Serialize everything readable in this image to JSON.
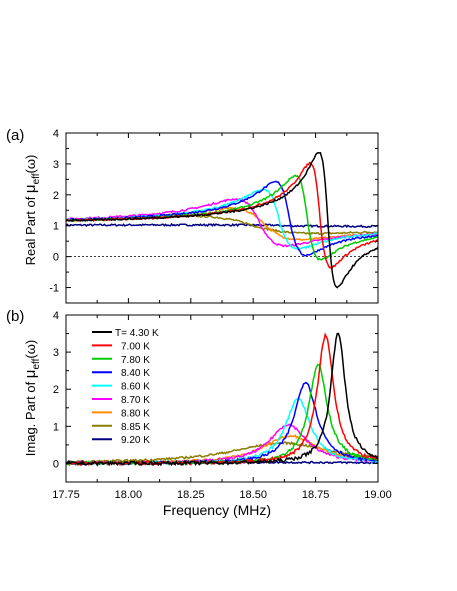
{
  "panels": {
    "a": {
      "label": "(a)",
      "ylabel": "Real Part of μ_eff(ω)",
      "ylabel_main": "Real Part of ",
      "ylabel_mu": "μ",
      "ylabel_sub": "eff",
      "ylabel_arg": "(ω)"
    },
    "b": {
      "label": "(b)",
      "ylabel": "Imag. Part of μ_eff(ω)",
      "ylabel_main": "Imag. Part of ",
      "ylabel_mu": "μ",
      "ylabel_sub": "eff",
      "ylabel_arg": "(ω)"
    }
  },
  "xlabel": "Frequency (MHz)",
  "chart_data": [
    {
      "type": "line",
      "panel": "(a)",
      "xlabel": "",
      "ylabel": "Real Part of μ_eff(ω)",
      "xlim": [
        17.75,
        19.0
      ],
      "ylim": [
        -1.5,
        4
      ],
      "xticks": [
        "17.75",
        "18.00",
        "18.25",
        "18.50",
        "18.75",
        "19.00"
      ],
      "yticks": [
        "-1",
        "0",
        "1",
        "2",
        "3",
        "4"
      ],
      "reference_line": {
        "y": 0,
        "style": "dotted"
      },
      "grid": false,
      "series": [
        {
          "name": "T= 4.30 K",
          "color": "#000000",
          "f0": 18.8,
          "peak": 3.35,
          "dip": -1.0,
          "w": 0.037
        },
        {
          "name": "7.00 K",
          "color": "#ff0000",
          "f0": 18.77,
          "peak": 3.0,
          "dip": -0.35,
          "w": 0.042
        },
        {
          "name": "7.80 K",
          "color": "#00cc00",
          "f0": 18.72,
          "peak": 2.6,
          "dip": -0.1,
          "w": 0.05
        },
        {
          "name": "8.40 K",
          "color": "#0000ff",
          "f0": 18.65,
          "peak": 2.4,
          "dip": 0.05,
          "w": 0.06
        },
        {
          "name": "8.60 K",
          "color": "#00ffff",
          "f0": 18.61,
          "peak": 2.15,
          "dip": 0.25,
          "w": 0.07
        },
        {
          "name": "8.70 K",
          "color": "#ff00ff",
          "f0": 18.53,
          "peak": 1.85,
          "dip": 0.35,
          "w": 0.1
        },
        {
          "name": "8.80 K",
          "color": "#ff8c00",
          "f0": 18.55,
          "peak": 1.55,
          "dip": 0.55,
          "w": 0.14
        },
        {
          "name": "8.85 K",
          "color": "#8b7d00",
          "f0": 18.5,
          "peak": 1.3,
          "dip": 0.75,
          "w": 0.25
        },
        {
          "name": "9.20 K",
          "color": "#000080",
          "f0": 18.6,
          "peak": 1.02,
          "dip": 0.98,
          "w": 0.5
        }
      ]
    },
    {
      "type": "line",
      "panel": "(b)",
      "xlabel": "Frequency (MHz)",
      "ylabel": "Imag. Part of μ_eff(ω)",
      "xlim": [
        17.75,
        19.0
      ],
      "ylim": [
        -0.5,
        4
      ],
      "xticks": [
        "17.75",
        "18.00",
        "18.25",
        "18.50",
        "18.75",
        "19.00"
      ],
      "yticks": [
        "0",
        "1",
        "2",
        "3",
        "4"
      ],
      "legend": "upper-left",
      "grid": false,
      "series": [
        {
          "name": "T= 4.30 K",
          "color": "#000000",
          "f0": 18.84,
          "peak": 3.55,
          "w": 0.035
        },
        {
          "name": "7.00 K",
          "color": "#ff0000",
          "f0": 18.79,
          "peak": 3.45,
          "w": 0.04
        },
        {
          "name": "7.80 K",
          "color": "#00cc00",
          "f0": 18.76,
          "peak": 2.65,
          "w": 0.045
        },
        {
          "name": "8.40 K",
          "color": "#0000ff",
          "f0": 18.71,
          "peak": 2.2,
          "w": 0.055
        },
        {
          "name": "8.60 K",
          "color": "#00ffff",
          "f0": 18.68,
          "peak": 1.75,
          "w": 0.06
        },
        {
          "name": "8.70 K",
          "color": "#ff00ff",
          "f0": 18.64,
          "peak": 1.05,
          "w": 0.09
        },
        {
          "name": "8.80 K",
          "color": "#ff8c00",
          "f0": 18.65,
          "peak": 0.75,
          "w": 0.13
        },
        {
          "name": "8.85 K",
          "color": "#8b7d00",
          "f0": 18.62,
          "peak": 0.55,
          "w": 0.25
        },
        {
          "name": "9.20 K",
          "color": "#000080",
          "f0": 18.6,
          "peak": 0.03,
          "w": 0.5
        }
      ]
    }
  ]
}
